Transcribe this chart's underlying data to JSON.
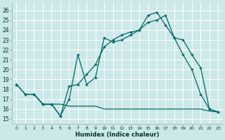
{
  "xlabel": "Humidex (Indice chaleur)",
  "bg_color": "#cce8e8",
  "grid_color": "#b8d8d8",
  "line_color": "#006666",
  "xlim": [
    -0.5,
    23.5
  ],
  "ylim": [
    14.5,
    26.8
  ],
  "yticks": [
    15,
    16,
    17,
    18,
    19,
    20,
    21,
    22,
    23,
    24,
    25,
    26
  ],
  "xticks": [
    0,
    1,
    2,
    3,
    4,
    5,
    6,
    7,
    8,
    9,
    10,
    11,
    12,
    13,
    14,
    15,
    16,
    17,
    18,
    19,
    20,
    21,
    22,
    23
  ],
  "line1_x": [
    0,
    1,
    2,
    3,
    4,
    5,
    6,
    7,
    8,
    9,
    10,
    11,
    12,
    13,
    14,
    15,
    16,
    17,
    18,
    19,
    20,
    21,
    22,
    23
  ],
  "line1_y": [
    18.5,
    17.5,
    17.5,
    16.5,
    16.5,
    15.3,
    17.0,
    21.5,
    18.5,
    19.2,
    23.2,
    22.8,
    23.0,
    23.5,
    24.0,
    25.5,
    25.8,
    24.5,
    23.2,
    21.5,
    20.0,
    17.5,
    16.0,
    15.7
  ],
  "line2_x": [
    0,
    1,
    2,
    3,
    4,
    5,
    6,
    7,
    8,
    9,
    10,
    11,
    12,
    13,
    14,
    15,
    16,
    17,
    18,
    19,
    20,
    21,
    22,
    23
  ],
  "line2_y": [
    18.5,
    17.5,
    17.5,
    16.5,
    16.5,
    15.3,
    18.3,
    18.5,
    19.5,
    20.5,
    22.3,
    23.0,
    23.5,
    23.8,
    24.0,
    24.8,
    25.0,
    25.5,
    23.2,
    23.0,
    21.5,
    20.2,
    16.0,
    15.7
  ],
  "line3_x": [
    2,
    3,
    4,
    5,
    6,
    7,
    8,
    9,
    10,
    11,
    12,
    13,
    14,
    15,
    16,
    17,
    18,
    19,
    20,
    21,
    22,
    23
  ],
  "line3_y": [
    17.5,
    16.5,
    16.5,
    16.5,
    16.3,
    16.3,
    16.3,
    16.3,
    16.0,
    16.0,
    16.0,
    16.0,
    16.0,
    16.0,
    16.0,
    16.0,
    16.0,
    16.0,
    16.0,
    16.0,
    15.8,
    15.7
  ]
}
